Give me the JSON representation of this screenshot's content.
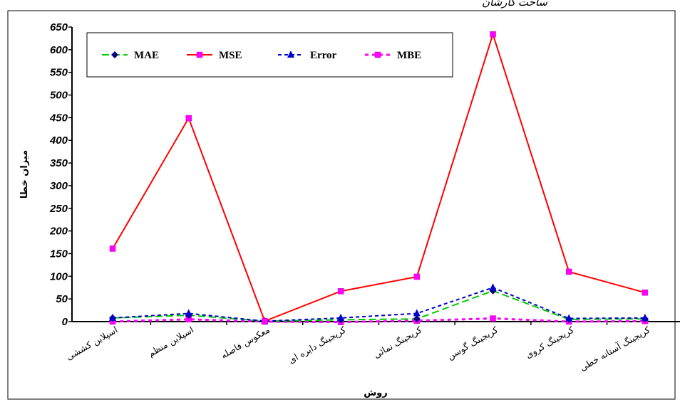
{
  "top_text": "ساحت کارشان",
  "chart_data": {
    "type": "line",
    "xlabel": "روش",
    "ylabel": "میزان خطا",
    "ylim": [
      0,
      650
    ],
    "yticks": [
      "0",
      "50",
      "100",
      "150",
      "200",
      "250",
      "300",
      "350",
      "400",
      "450",
      "500",
      "550",
      "600",
      "650"
    ],
    "categories": [
      "اسپلاین کششی",
      "اسپلاین منظم",
      "معکوس فاصله",
      "کریجینگ دایره ای",
      "کریجینگ نمائی",
      "کریجینگ گوسن",
      "کریجینگ کروی",
      "کریجینگ آستانه خطی"
    ],
    "legend_position": "top",
    "grid": false,
    "series": [
      {
        "name": "MAE",
        "color": "#00cc00",
        "dash": "10,5",
        "marker": "diamond",
        "marker_color": "#000080",
        "values": [
          8,
          14,
          1,
          4,
          6,
          68,
          5,
          6
        ]
      },
      {
        "name": "MSE",
        "color": "#ff0000",
        "dash": "",
        "marker": "square",
        "marker_color": "#ff00ff",
        "values": [
          161,
          449,
          1,
          67,
          99,
          634,
          110,
          64
        ]
      },
      {
        "name": "Error",
        "color": "#0000cc",
        "dash": "5,4",
        "marker": "triangle",
        "marker_color": "#0000cc",
        "values": [
          8,
          18,
          1,
          8,
          18,
          75,
          7,
          8
        ]
      },
      {
        "name": "MBE",
        "color": "#ff00ff",
        "dash": "5,5",
        "marker": "square",
        "marker_color": "#ff00ff",
        "values": [
          0,
          5,
          0,
          -1,
          2,
          7,
          0,
          1
        ]
      }
    ]
  }
}
